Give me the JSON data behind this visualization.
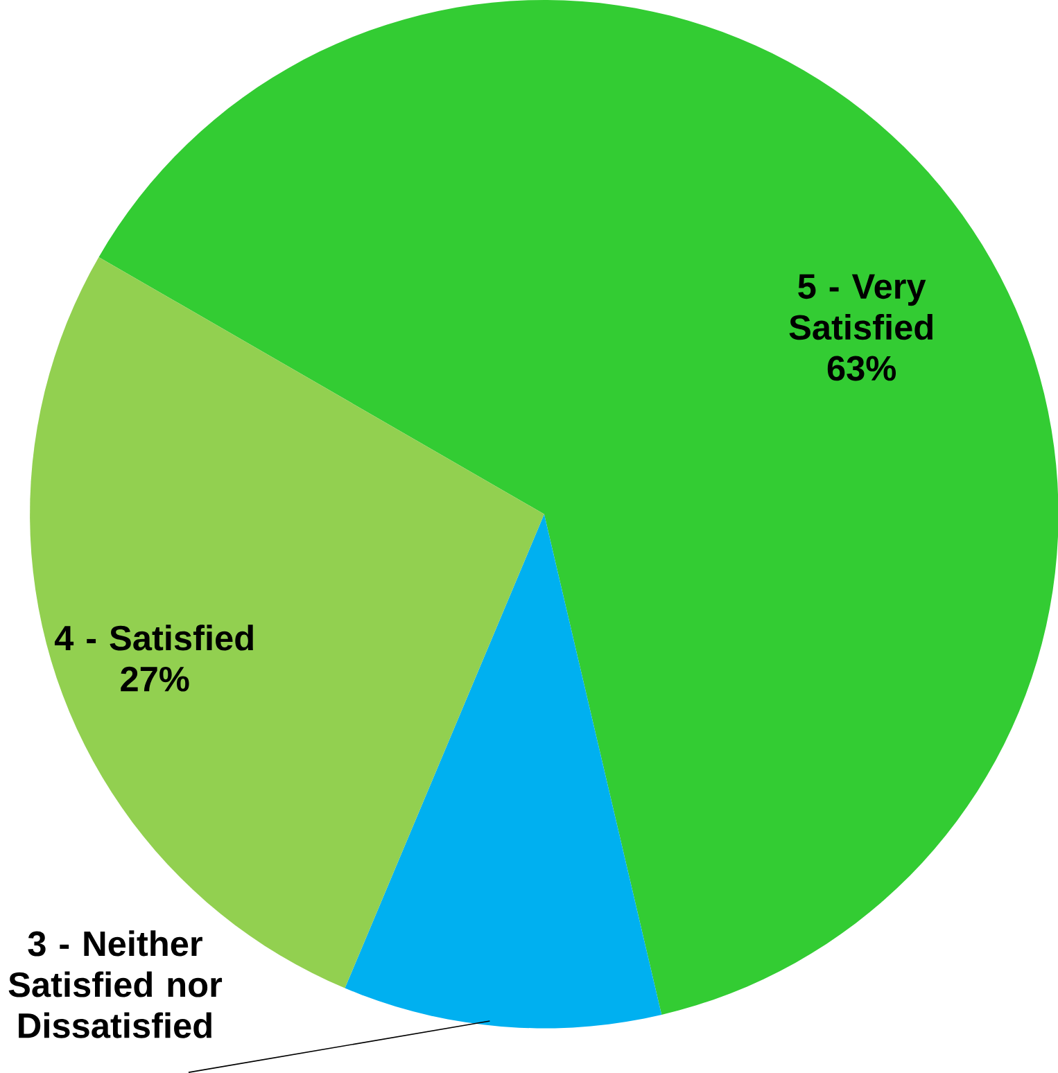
{
  "chart_data": {
    "type": "pie",
    "categories": [
      "5 - Very Satisfied",
      "3 - Neither Satisfied nor Dissatisfied",
      "4 - Satisfied"
    ],
    "values": [
      63,
      10,
      27
    ],
    "colors": [
      "#33cc33",
      "#00b0f0",
      "#92d050"
    ],
    "value_labels": [
      "63%",
      null,
      "27%"
    ]
  }
}
